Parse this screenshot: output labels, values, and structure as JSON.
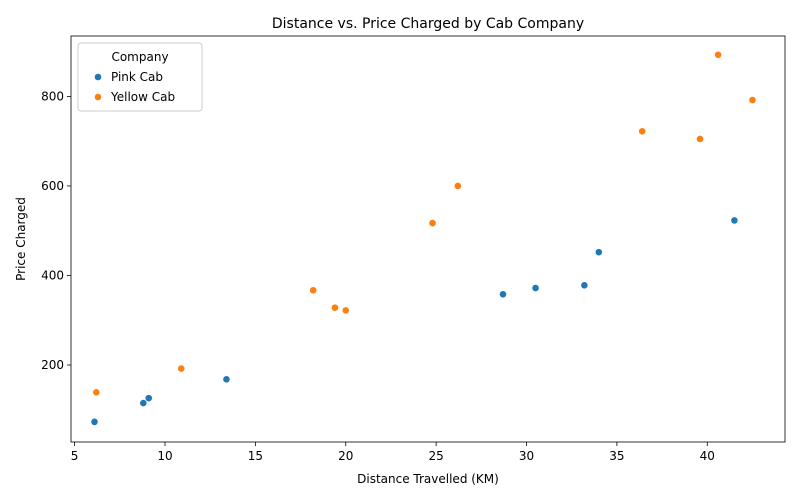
{
  "chart_data": {
    "type": "scatter",
    "title": "Distance vs. Price Charged by Cab Company",
    "xlabel": "Distance Travelled (KM)",
    "ylabel": "Price Charged",
    "xlim": [
      4.8,
      44.3
    ],
    "ylim": [
      28,
      935
    ],
    "xticks": [
      5,
      10,
      15,
      20,
      25,
      30,
      35,
      40
    ],
    "yticks": [
      200,
      400,
      600,
      800
    ],
    "grid": false,
    "legend": {
      "title": "Company",
      "placement": "top-left"
    },
    "series": [
      {
        "name": "Pink Cab",
        "color": "#1f77b4",
        "points": [
          {
            "x": 6.1,
            "y": 73
          },
          {
            "x": 8.8,
            "y": 115
          },
          {
            "x": 9.1,
            "y": 126
          },
          {
            "x": 13.4,
            "y": 168
          },
          {
            "x": 28.7,
            "y": 358
          },
          {
            "x": 30.5,
            "y": 372
          },
          {
            "x": 33.2,
            "y": 378
          },
          {
            "x": 34.0,
            "y": 452
          },
          {
            "x": 41.5,
            "y": 523
          }
        ]
      },
      {
        "name": "Yellow Cab",
        "color": "#ff7f0e",
        "points": [
          {
            "x": 6.2,
            "y": 139
          },
          {
            "x": 10.9,
            "y": 192
          },
          {
            "x": 18.2,
            "y": 367
          },
          {
            "x": 19.4,
            "y": 328
          },
          {
            "x": 20.0,
            "y": 322
          },
          {
            "x": 24.8,
            "y": 517
          },
          {
            "x": 26.2,
            "y": 600
          },
          {
            "x": 36.4,
            "y": 722
          },
          {
            "x": 39.6,
            "y": 705
          },
          {
            "x": 40.6,
            "y": 893
          },
          {
            "x": 42.5,
            "y": 792
          }
        ]
      }
    ]
  }
}
